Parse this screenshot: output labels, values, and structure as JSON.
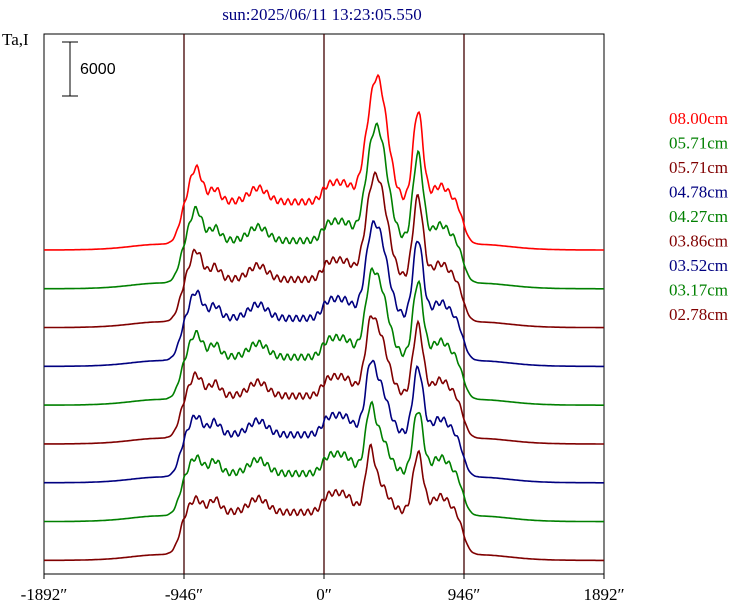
{
  "chart_data": {
    "type": "line",
    "title": "sun:2025/06/11 13:23:05.550",
    "ylabel": "Ta,I",
    "xlim": [
      -1892,
      1892
    ],
    "x_ticks": [
      -1892,
      -946,
      0,
      946,
      1892
    ],
    "x_tick_labels": [
      "-1892″",
      "-946″",
      "0″",
      "946″",
      "1892″"
    ],
    "vlines": [
      -946,
      0,
      946
    ],
    "scale_bar": {
      "value": 6000,
      "label": "6000"
    },
    "grid": false,
    "legend_position": "right",
    "series": [
      {
        "name": "08.00cm",
        "color": "#ff0000"
      },
      {
        "name": "05.71cm",
        "color": "#008000"
      },
      {
        "name": "05.71cm",
        "color": "#800000"
      },
      {
        "name": "04.78cm",
        "color": "#000080"
      },
      {
        "name": "04.27cm",
        "color": "#008000"
      },
      {
        "name": "03.86cm",
        "color": "#800000"
      },
      {
        "name": "03.52cm",
        "color": "#000080"
      },
      {
        "name": "03.17cm",
        "color": "#008000"
      },
      {
        "name": "02.78cm",
        "color": "#800000"
      }
    ]
  }
}
